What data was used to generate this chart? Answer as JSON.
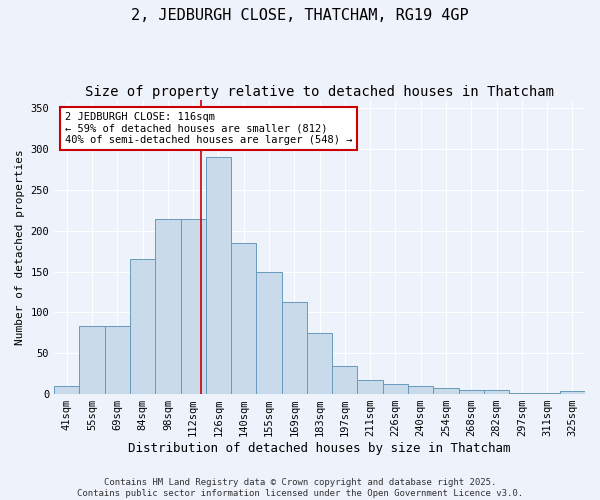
{
  "title": "2, JEDBURGH CLOSE, THATCHAM, RG19 4GP",
  "subtitle": "Size of property relative to detached houses in Thatcham",
  "xlabel": "Distribution of detached houses by size in Thatcham",
  "ylabel": "Number of detached properties",
  "categories": [
    "41sqm",
    "55sqm",
    "69sqm",
    "84sqm",
    "98sqm",
    "112sqm",
    "126sqm",
    "140sqm",
    "155sqm",
    "169sqm",
    "183sqm",
    "197sqm",
    "211sqm",
    "226sqm",
    "240sqm",
    "254sqm",
    "268sqm",
    "282sqm",
    "297sqm",
    "311sqm",
    "325sqm"
  ],
  "values": [
    10,
    83,
    83,
    165,
    215,
    215,
    290,
    185,
    150,
    113,
    75,
    35,
    17,
    12,
    10,
    7,
    5,
    5,
    1,
    1,
    4
  ],
  "bar_color": "#c9daea",
  "bar_edge_color": "#6699bb",
  "bar_edge_width": 0.7,
  "background_color": "#eef2fb",
  "grid_color": "#ffffff",
  "red_line_index": 5.29,
  "annotation_text": "2 JEDBURGH CLOSE: 116sqm\n← 59% of detached houses are smaller (812)\n40% of semi-detached houses are larger (548) →",
  "annotation_box_facecolor": "#ffffff",
  "annotation_box_edgecolor": "#cc0000",
  "footer_text": "Contains HM Land Registry data © Crown copyright and database right 2025.\nContains public sector information licensed under the Open Government Licence v3.0.",
  "ylim": [
    0,
    360
  ],
  "yticks": [
    0,
    50,
    100,
    150,
    200,
    250,
    300,
    350
  ],
  "title_fontsize": 11,
  "subtitle_fontsize": 10,
  "xlabel_fontsize": 9,
  "ylabel_fontsize": 8,
  "tick_fontsize": 7.5,
  "annotation_fontsize": 7.5,
  "footer_fontsize": 6.5
}
